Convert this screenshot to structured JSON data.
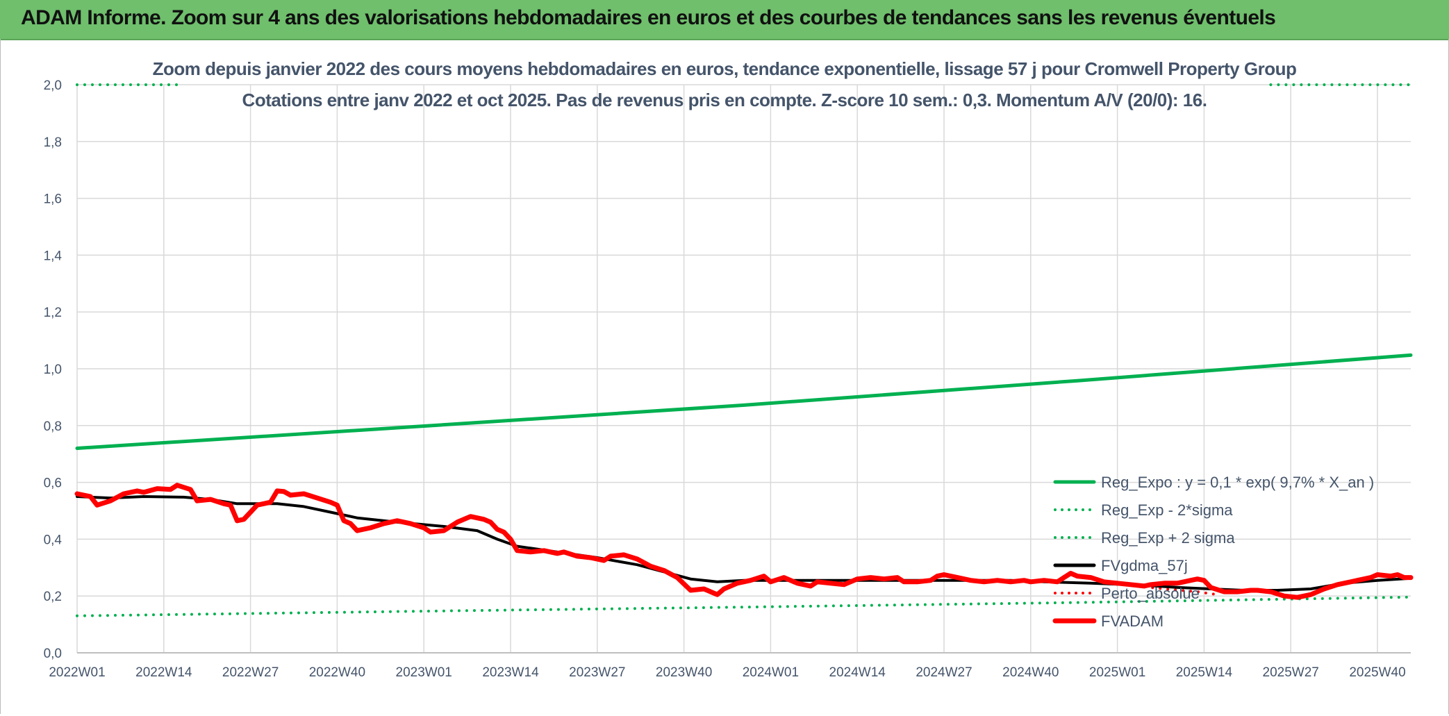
{
  "page_title": "ADAM Informe. Zoom sur 4 ans des valorisations hebdomadaires en euros et des courbes de tendances sans les revenus éventuels",
  "colors": {
    "banner": "#6fbf6c",
    "regression": "#00b050",
    "fvadam": "#ff0000",
    "gdma": "#000000",
    "grid": "#d9d9d9",
    "text": "#44546a"
  },
  "chart_data": {
    "type": "line",
    "title": "Zoom depuis janvier 2022 des cours moyens hebdomadaires en euros, tendance exponentielle, lissage 57 j pour Cromwell Property Group",
    "subtitle": "Cotations entre janv 2022 et oct 2025. Pas de revenus pris en compte. Z-score 10 sem.: 0,3. Momentum A/V (20/0): 16.",
    "xlabel": "",
    "ylabel": "",
    "ylim": [
      0,
      2
    ],
    "y_ticks": [
      "0,0",
      "0,2",
      "0,4",
      "0,6",
      "0,8",
      "1,0",
      "1,2",
      "1,4",
      "1,6",
      "1,8",
      "2,0"
    ],
    "x_ticks": [
      "2022W01",
      "2022W14",
      "2022W27",
      "2022W40",
      "2023W01",
      "2023W14",
      "2023W27",
      "2023W40",
      "2024W01",
      "2024W14",
      "2024W27",
      "2024W40",
      "2025W01",
      "2025W14",
      "2025W27",
      "2025W40"
    ],
    "x_tick_weeks": [
      0,
      13,
      26,
      39,
      52,
      65,
      78,
      91,
      104,
      117,
      130,
      143,
      156,
      169,
      182,
      195
    ],
    "x_range": [
      0,
      200
    ],
    "grid": true,
    "legend_position": "bottom-right",
    "series": [
      {
        "name": "Reg_Expo : y = 0,1 * exp( 9,7% *  X_an )",
        "style": "solid",
        "color": "#00b050",
        "width": 5,
        "points": [
          [
            0,
            0.72
          ],
          [
            50,
            0.795
          ],
          [
            100,
            0.872
          ],
          [
            150,
            0.958
          ],
          [
            200,
            1.048
          ]
        ]
      },
      {
        "name": "Reg_Exp - 2*sigma",
        "style": "dotted",
        "color": "#00b050",
        "width": 4,
        "points": [
          [
            0,
            0.13
          ],
          [
            50,
            0.146
          ],
          [
            100,
            0.161
          ],
          [
            150,
            0.177
          ],
          [
            200,
            0.196
          ]
        ]
      },
      {
        "name": "Reg_Exp + 2 sigma",
        "style": "dotted",
        "color": "#00b050",
        "width": 4,
        "points": [
          [
            0,
            2.0
          ],
          [
            15,
            2.0
          ]
        ],
        "extra_points": [
          [
            179,
            2.0
          ],
          [
            200,
            2.0
          ]
        ]
      },
      {
        "name": "FVgdma_57j",
        "style": "solid",
        "color": "#000000",
        "width": 4,
        "points": [
          [
            0,
            0.55
          ],
          [
            5,
            0.545
          ],
          [
            10,
            0.55
          ],
          [
            16,
            0.548
          ],
          [
            20,
            0.54
          ],
          [
            24,
            0.525
          ],
          [
            30,
            0.525
          ],
          [
            34,
            0.515
          ],
          [
            38,
            0.495
          ],
          [
            42,
            0.475
          ],
          [
            48,
            0.46
          ],
          [
            55,
            0.445
          ],
          [
            60,
            0.43
          ],
          [
            63,
            0.4
          ],
          [
            66,
            0.375
          ],
          [
            72,
            0.355
          ],
          [
            78,
            0.335
          ],
          [
            84,
            0.31
          ],
          [
            88,
            0.285
          ],
          [
            92,
            0.26
          ],
          [
            96,
            0.25
          ],
          [
            100,
            0.255
          ],
          [
            110,
            0.255
          ],
          [
            120,
            0.255
          ],
          [
            130,
            0.255
          ],
          [
            140,
            0.255
          ],
          [
            145,
            0.25
          ],
          [
            152,
            0.245
          ],
          [
            160,
            0.238
          ],
          [
            165,
            0.23
          ],
          [
            170,
            0.225
          ],
          [
            175,
            0.22
          ],
          [
            180,
            0.22
          ],
          [
            185,
            0.225
          ],
          [
            190,
            0.245
          ],
          [
            195,
            0.255
          ],
          [
            200,
            0.262
          ]
        ]
      },
      {
        "name": "Perto_absolue",
        "style": "dotted",
        "color": "#ff0000",
        "width": 4,
        "points": [
          [
            159,
            0.235
          ],
          [
            163,
            0.225
          ],
          [
            168,
            0.215
          ],
          [
            171,
            0.205
          ]
        ]
      },
      {
        "name": "FVADAM",
        "style": "solid",
        "color": "#ff0000",
        "width": 7,
        "points": [
          [
            0,
            0.56
          ],
          [
            2,
            0.55
          ],
          [
            3,
            0.52
          ],
          [
            5,
            0.535
          ],
          [
            7,
            0.56
          ],
          [
            9,
            0.57
          ],
          [
            10,
            0.565
          ],
          [
            12,
            0.578
          ],
          [
            14,
            0.575
          ],
          [
            15,
            0.59
          ],
          [
            17,
            0.575
          ],
          [
            18,
            0.535
          ],
          [
            20,
            0.54
          ],
          [
            22,
            0.525
          ],
          [
            23,
            0.52
          ],
          [
            24,
            0.465
          ],
          [
            25,
            0.47
          ],
          [
            27,
            0.52
          ],
          [
            29,
            0.53
          ],
          [
            30,
            0.57
          ],
          [
            31,
            0.568
          ],
          [
            32,
            0.555
          ],
          [
            34,
            0.56
          ],
          [
            36,
            0.545
          ],
          [
            38,
            0.53
          ],
          [
            39,
            0.52
          ],
          [
            40,
            0.465
          ],
          [
            41,
            0.455
          ],
          [
            42,
            0.43
          ],
          [
            44,
            0.44
          ],
          [
            46,
            0.455
          ],
          [
            48,
            0.465
          ],
          [
            50,
            0.455
          ],
          [
            52,
            0.44
          ],
          [
            53,
            0.425
          ],
          [
            55,
            0.43
          ],
          [
            57,
            0.46
          ],
          [
            59,
            0.48
          ],
          [
            61,
            0.47
          ],
          [
            62,
            0.46
          ],
          [
            63,
            0.435
          ],
          [
            64,
            0.425
          ],
          [
            65,
            0.4
          ],
          [
            66,
            0.36
          ],
          [
            68,
            0.355
          ],
          [
            70,
            0.36
          ],
          [
            72,
            0.35
          ],
          [
            73,
            0.355
          ],
          [
            75,
            0.34
          ],
          [
            77,
            0.335
          ],
          [
            79,
            0.325
          ],
          [
            80,
            0.34
          ],
          [
            82,
            0.345
          ],
          [
            84,
            0.33
          ],
          [
            86,
            0.305
          ],
          [
            88,
            0.29
          ],
          [
            90,
            0.265
          ],
          [
            92,
            0.22
          ],
          [
            94,
            0.225
          ],
          [
            95,
            0.215
          ],
          [
            96,
            0.205
          ],
          [
            97,
            0.225
          ],
          [
            99,
            0.245
          ],
          [
            101,
            0.255
          ],
          [
            103,
            0.27
          ],
          [
            104,
            0.25
          ],
          [
            106,
            0.265
          ],
          [
            108,
            0.245
          ],
          [
            110,
            0.235
          ],
          [
            111,
            0.25
          ],
          [
            113,
            0.245
          ],
          [
            115,
            0.24
          ],
          [
            117,
            0.26
          ],
          [
            119,
            0.265
          ],
          [
            121,
            0.26
          ],
          [
            123,
            0.265
          ],
          [
            124,
            0.25
          ],
          [
            126,
            0.25
          ],
          [
            128,
            0.255
          ],
          [
            129,
            0.27
          ],
          [
            130,
            0.275
          ],
          [
            132,
            0.265
          ],
          [
            134,
            0.255
          ],
          [
            136,
            0.25
          ],
          [
            138,
            0.255
          ],
          [
            140,
            0.25
          ],
          [
            142,
            0.255
          ],
          [
            143,
            0.25
          ],
          [
            145,
            0.255
          ],
          [
            147,
            0.25
          ],
          [
            148,
            0.265
          ],
          [
            149,
            0.28
          ],
          [
            150,
            0.27
          ],
          [
            152,
            0.265
          ],
          [
            154,
            0.25
          ],
          [
            156,
            0.245
          ],
          [
            158,
            0.24
          ],
          [
            160,
            0.235
          ],
          [
            161,
            0.24
          ],
          [
            163,
            0.245
          ],
          [
            165,
            0.245
          ],
          [
            167,
            0.255
          ],
          [
            168,
            0.26
          ],
          [
            169,
            0.255
          ],
          [
            170,
            0.23
          ],
          [
            172,
            0.215
          ],
          [
            174,
            0.215
          ],
          [
            176,
            0.22
          ],
          [
            177,
            0.22
          ],
          [
            179,
            0.215
          ],
          [
            181,
            0.2
          ],
          [
            183,
            0.195
          ],
          [
            185,
            0.205
          ],
          [
            187,
            0.225
          ],
          [
            189,
            0.24
          ],
          [
            191,
            0.25
          ],
          [
            192,
            0.255
          ],
          [
            194,
            0.265
          ],
          [
            195,
            0.275
          ],
          [
            197,
            0.27
          ],
          [
            198,
            0.275
          ],
          [
            199,
            0.265
          ],
          [
            200,
            0.265
          ]
        ]
      }
    ]
  }
}
